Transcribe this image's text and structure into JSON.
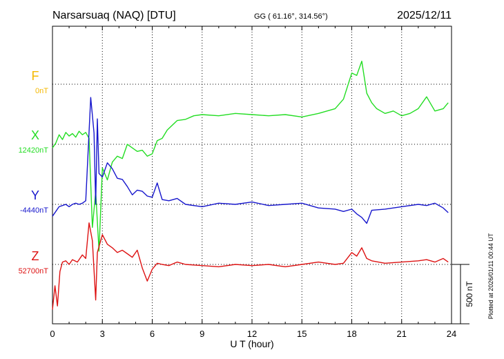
{
  "header": {
    "station": "Narsarsuaq (NAQ)  [DTU]",
    "coords": "GG ( 61.16°, 314.56°)",
    "date": "2025/12/11"
  },
  "footer": {
    "plotted": "Plotted at 2026/01/11 00:44 UT"
  },
  "chart_data": {
    "type": "line",
    "xlabel": "U T (hour)",
    "xlim": [
      0,
      24
    ],
    "xticks": [
      "0",
      "3",
      "6",
      "9",
      "12",
      "15",
      "18",
      "21",
      "24"
    ],
    "grid": true,
    "scale_bar": {
      "label": "500 nT",
      "value_nT": 500
    },
    "colors": {
      "F": "#f5b800",
      "X": "#22dd22",
      "Y": "#1515cc",
      "Z": "#dd1111"
    },
    "series": [
      {
        "name": "F",
        "baseline": "0nT",
        "x": [],
        "values": []
      },
      {
        "name": "X",
        "baseline": "12420nT",
        "x": [
          0,
          0.2,
          0.4,
          0.6,
          0.8,
          1.0,
          1.2,
          1.4,
          1.6,
          1.8,
          2.0,
          2.2,
          2.4,
          2.6,
          2.8,
          3.0,
          3.3,
          3.6,
          3.9,
          4.2,
          4.5,
          4.8,
          5.1,
          5.4,
          5.7,
          6.0,
          6.3,
          6.6,
          6.9,
          7.5,
          8.0,
          8.5,
          9.0,
          10,
          11,
          12,
          13,
          14,
          15,
          16,
          17,
          17.5,
          18.0,
          18.3,
          18.6,
          18.9,
          19.2,
          19.5,
          20,
          20.5,
          21,
          21.5,
          22,
          22.5,
          23,
          23.5,
          23.8
        ],
        "values": [
          -30,
          10,
          80,
          40,
          100,
          70,
          90,
          60,
          110,
          80,
          100,
          50,
          -700,
          -400,
          -900,
          -200,
          -300,
          -150,
          -100,
          -120,
          0,
          -30,
          -60,
          -50,
          -100,
          -80,
          30,
          50,
          120,
          200,
          210,
          240,
          250,
          240,
          260,
          250,
          240,
          250,
          230,
          260,
          300,
          380,
          600,
          580,
          700,
          430,
          350,
          300,
          260,
          280,
          240,
          260,
          300,
          400,
          280,
          300,
          350
        ]
      },
      {
        "name": "Y",
        "baseline": "-4440nT",
        "x": [
          0,
          0.2,
          0.4,
          0.6,
          0.8,
          1.0,
          1.2,
          1.4,
          1.6,
          1.8,
          2.0,
          2.3,
          2.5,
          2.6,
          2.7,
          2.8,
          3.0,
          3.3,
          3.6,
          3.9,
          4.2,
          4.5,
          4.8,
          5.1,
          5.4,
          5.7,
          6.0,
          6.3,
          6.6,
          7.0,
          7.5,
          8.0,
          9,
          10,
          11,
          12,
          13,
          14,
          15,
          16,
          17,
          17.5,
          18.0,
          18.3,
          18.6,
          18.9,
          19.2,
          20,
          21,
          22,
          22.5,
          23,
          23.5,
          23.8
        ],
        "values": [
          -100,
          -60,
          -20,
          -10,
          0,
          -20,
          0,
          10,
          0,
          10,
          30,
          900,
          600,
          0,
          720,
          260,
          230,
          350,
          300,
          220,
          210,
          150,
          80,
          120,
          110,
          70,
          60,
          180,
          40,
          30,
          50,
          0,
          -20,
          10,
          0,
          20,
          -10,
          0,
          10,
          -30,
          -40,
          -60,
          -40,
          -80,
          -110,
          -160,
          -50,
          -40,
          -20,
          0,
          -10,
          10,
          -30,
          -70
        ]
      },
      {
        "name": "Z",
        "baseline": "52700nT",
        "x": [
          0,
          0.15,
          0.3,
          0.45,
          0.6,
          0.8,
          1.0,
          1.2,
          1.5,
          1.8,
          2.0,
          2.2,
          2.4,
          2.6,
          2.7,
          2.8,
          3.0,
          3.3,
          3.6,
          3.9,
          4.2,
          4.5,
          4.8,
          5.1,
          5.4,
          5.7,
          6.0,
          6.3,
          6.6,
          7.0,
          7.5,
          8,
          9,
          10,
          11,
          12,
          13,
          14,
          15,
          16,
          17,
          17.5,
          18.0,
          18.3,
          18.6,
          18.9,
          19.2,
          20,
          21,
          22,
          22.5,
          23,
          23.5,
          23.8
        ],
        "values": [
          -380,
          -180,
          -350,
          -60,
          20,
          30,
          0,
          40,
          20,
          80,
          50,
          350,
          200,
          -300,
          100,
          150,
          250,
          170,
          140,
          100,
          120,
          90,
          60,
          120,
          -30,
          -140,
          -40,
          10,
          0,
          -10,
          20,
          0,
          -10,
          -20,
          0,
          -10,
          0,
          -20,
          0,
          20,
          0,
          10,
          100,
          70,
          140,
          50,
          30,
          10,
          20,
          30,
          40,
          20,
          50,
          20
        ]
      }
    ]
  }
}
